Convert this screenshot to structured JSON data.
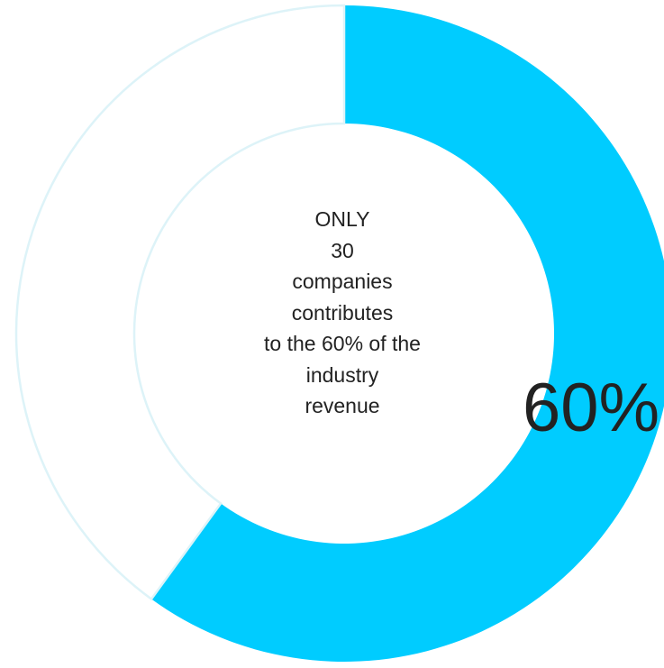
{
  "colors": {
    "highlight": "#00CCFF",
    "remainder": "#FFFFFF",
    "remainder_outline": "#DDF3F8",
    "text": "#222222"
  },
  "chart_data": {
    "type": "pie",
    "donut": true,
    "title": "",
    "slices": [
      {
        "label": "60%",
        "value": 60,
        "color": "#00CCFF"
      },
      {
        "label": "",
        "value": 40,
        "color": "#FFFFFF"
      }
    ],
    "center_text": [
      "ONLY",
      "30",
      "companies",
      "contributes",
      "to the 60% of the",
      "industry",
      "revenue"
    ],
    "legend": "none"
  }
}
